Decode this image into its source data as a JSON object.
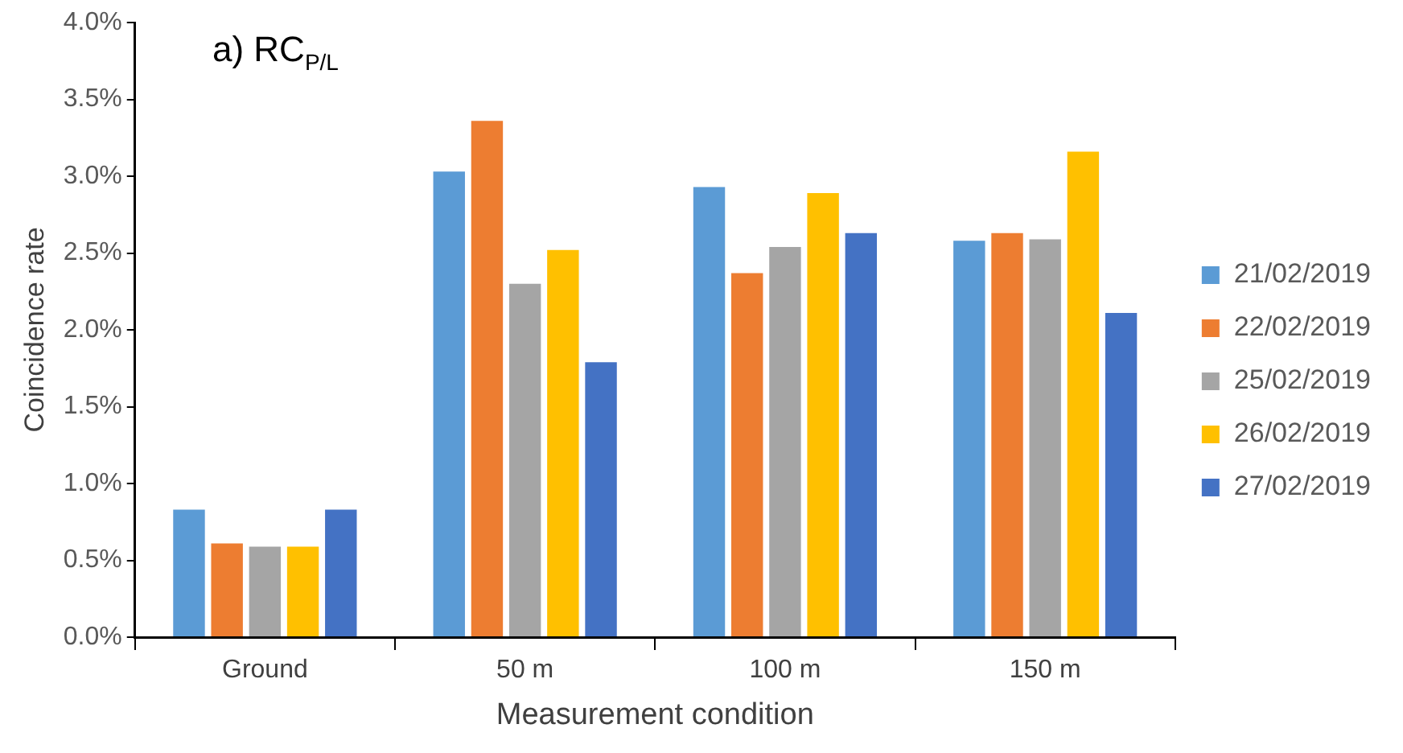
{
  "chart_data": {
    "type": "bar",
    "title": "a) RC$_{P/L}$",
    "xlabel": "Measurement condition",
    "ylabel": "Coincidence rate",
    "categories": [
      "Ground",
      "50 m",
      "100 m",
      "150 m"
    ],
    "series": [
      {
        "name": "21/02/2019",
        "color": "#5b9bd5",
        "values": [
          0.84,
          3.04,
          2.94,
          2.59
        ]
      },
      {
        "name": "22/02/2019",
        "color": "#ed7d31",
        "values": [
          0.62,
          3.37,
          2.38,
          2.64
        ]
      },
      {
        "name": "25/02/2019",
        "color": "#a5a5a5",
        "values": [
          0.6,
          2.31,
          2.55,
          2.6
        ]
      },
      {
        "name": "26/02/2019",
        "color": "#ffc000",
        "values": [
          0.6,
          2.53,
          2.9,
          3.17
        ]
      },
      {
        "name": "27/02/2019",
        "color": "#4472c4",
        "values": [
          0.84,
          1.8,
          2.64,
          2.12
        ]
      }
    ],
    "ylim": [
      0,
      4
    ],
    "yticks": [
      {
        "value": 0,
        "label": "0.0%"
      },
      {
        "value": 0.5,
        "label": "0.5%"
      },
      {
        "value": 1,
        "label": "1.0%"
      },
      {
        "value": 1.5,
        "label": "1.5%"
      },
      {
        "value": 2,
        "label": "2.0%"
      },
      {
        "value": 2.5,
        "label": "2.5%"
      },
      {
        "value": 3,
        "label": "3.0%"
      },
      {
        "value": 3.5,
        "label": "3.5%"
      },
      {
        "value": 4,
        "label": "4.0%"
      }
    ],
    "grid": false,
    "legend": "right"
  }
}
